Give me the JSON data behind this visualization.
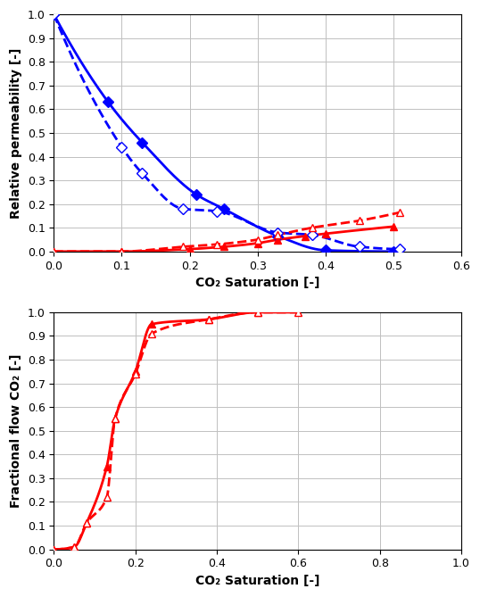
{
  "top_plot": {
    "xlabel": "CO₂ Saturation [-]",
    "ylabel": "Relative permeability [-]",
    "xlim": [
      0.0,
      0.6
    ],
    "ylim": [
      0.0,
      1.0
    ],
    "xticks": [
      0.0,
      0.1,
      0.2,
      0.3,
      0.4,
      0.5,
      0.6
    ],
    "yticks": [
      0.0,
      0.1,
      0.2,
      0.3,
      0.4,
      0.5,
      0.6,
      0.7,
      0.8,
      0.9,
      1.0
    ],
    "blue_solid_pts": [
      [
        0.0,
        1.0
      ],
      [
        0.08,
        0.63
      ],
      [
        0.13,
        0.46
      ],
      [
        0.21,
        0.24
      ],
      [
        0.25,
        0.18
      ],
      [
        0.33,
        0.065
      ],
      [
        0.4,
        0.005
      ],
      [
        0.5,
        0.0
      ]
    ],
    "blue_dashed_pts": [
      [
        0.0,
        1.0
      ],
      [
        0.1,
        0.44
      ],
      [
        0.13,
        0.33
      ],
      [
        0.19,
        0.18
      ],
      [
        0.24,
        0.17
      ],
      [
        0.33,
        0.08
      ],
      [
        0.38,
        0.07
      ],
      [
        0.45,
        0.02
      ],
      [
        0.51,
        0.01
      ]
    ],
    "red_solid_pts": [
      [
        0.0,
        0.0
      ],
      [
        0.1,
        0.0
      ],
      [
        0.2,
        0.01
      ],
      [
        0.25,
        0.02
      ],
      [
        0.3,
        0.035
      ],
      [
        0.33,
        0.05
      ],
      [
        0.37,
        0.065
      ],
      [
        0.4,
        0.075
      ],
      [
        0.5,
        0.105
      ]
    ],
    "red_dashed_pts": [
      [
        0.0,
        0.0
      ],
      [
        0.1,
        0.0
      ],
      [
        0.19,
        0.02
      ],
      [
        0.24,
        0.03
      ],
      [
        0.3,
        0.05
      ],
      [
        0.33,
        0.07
      ],
      [
        0.38,
        0.1
      ],
      [
        0.45,
        0.13
      ],
      [
        0.51,
        0.165
      ]
    ],
    "blue_color": "#0000FF",
    "red_color": "#FF0000"
  },
  "bottom_plot": {
    "xlabel": "CO₂ Saturation [-]",
    "ylabel": "Fractional flow CO₂ [-]",
    "xlim": [
      0.0,
      1.0
    ],
    "ylim": [
      0.0,
      1.0
    ],
    "xticks": [
      0.0,
      0.2,
      0.4,
      0.6,
      0.8,
      1.0
    ],
    "yticks": [
      0.0,
      0.1,
      0.2,
      0.3,
      0.4,
      0.5,
      0.6,
      0.7,
      0.8,
      0.9,
      1.0
    ],
    "solid_pts": [
      [
        0.0,
        0.0
      ],
      [
        0.05,
        0.01
      ],
      [
        0.08,
        0.11
      ],
      [
        0.13,
        0.35
      ],
      [
        0.15,
        0.55
      ],
      [
        0.2,
        0.75
      ],
      [
        0.24,
        0.95
      ],
      [
        0.38,
        0.97
      ],
      [
        0.5,
        1.0
      ],
      [
        0.6,
        1.0
      ]
    ],
    "dashed_pts": [
      [
        0.0,
        0.0
      ],
      [
        0.05,
        0.01
      ],
      [
        0.08,
        0.11
      ],
      [
        0.13,
        0.22
      ],
      [
        0.15,
        0.55
      ],
      [
        0.2,
        0.74
      ],
      [
        0.24,
        0.91
      ],
      [
        0.38,
        0.97
      ],
      [
        0.5,
        1.0
      ],
      [
        0.6,
        1.0
      ]
    ],
    "solid_markers": [
      [
        0.0,
        0.0
      ],
      [
        0.05,
        0.01
      ],
      [
        0.08,
        0.11
      ],
      [
        0.13,
        0.35
      ],
      [
        0.15,
        0.55
      ],
      [
        0.2,
        0.75
      ],
      [
        0.24,
        0.95
      ],
      [
        0.38,
        0.97
      ],
      [
        0.5,
        1.0
      ]
    ],
    "dashed_markers": [
      [
        0.0,
        0.0
      ],
      [
        0.05,
        0.01
      ],
      [
        0.08,
        0.11
      ],
      [
        0.13,
        0.22
      ],
      [
        0.15,
        0.55
      ],
      [
        0.2,
        0.74
      ],
      [
        0.24,
        0.91
      ],
      [
        0.38,
        0.97
      ],
      [
        0.5,
        1.0
      ],
      [
        0.6,
        1.0
      ]
    ],
    "red_color": "#FF0000"
  }
}
